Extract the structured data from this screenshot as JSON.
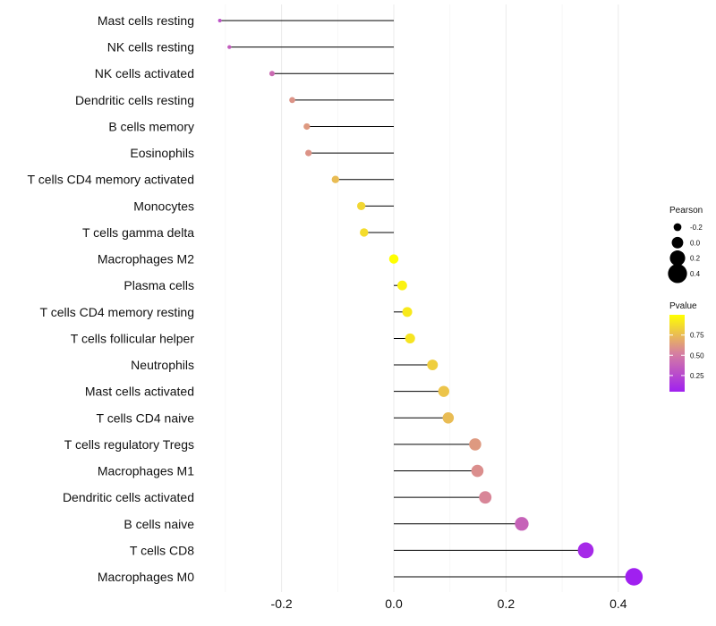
{
  "chart_data": {
    "type": "lollipop",
    "xlim": [
      -0.31,
      0.44
    ],
    "x_ticks": [
      {
        "value": -0.2,
        "label": "-0.2"
      },
      {
        "value": 0.0,
        "label": "0.0"
      },
      {
        "value": 0.2,
        "label": "0.2"
      },
      {
        "value": 0.4,
        "label": "0.4"
      }
    ],
    "baseline": 0,
    "grid": true,
    "categories": [
      "Mast cells resting",
      "NK cells resting",
      "NK cells activated",
      "Dendritic cells resting",
      "B cells memory",
      "Eosinophils",
      "T cells CD4 memory activated",
      "Monocytes",
      "T cells gamma delta",
      "Macrophages M2",
      "Plasma cells",
      "T cells CD4 memory resting",
      "T cells follicular helper",
      "Neutrophils",
      "Mast cells activated",
      "T cells CD4 naive",
      "T cells regulatory  Tregs ",
      "Macrophages M1",
      "Dendritic cells activated",
      "B cells naive",
      "T cells CD8",
      "Macrophages M0"
    ],
    "pearson": [
      -0.31,
      -0.293,
      -0.217,
      -0.181,
      -0.155,
      -0.152,
      -0.104,
      -0.058,
      -0.053,
      0.0,
      0.015,
      0.024,
      0.029,
      0.069,
      0.089,
      0.097,
      0.145,
      0.149,
      0.163,
      0.228,
      0.342,
      0.428
    ],
    "pvalue": [
      0.3,
      0.35,
      0.42,
      0.6,
      0.62,
      0.6,
      0.75,
      0.85,
      0.87,
      1.0,
      0.95,
      0.92,
      0.9,
      0.82,
      0.78,
      0.75,
      0.62,
      0.58,
      0.55,
      0.38,
      0.1,
      0.05
    ],
    "size_legend": {
      "title": "Pearson",
      "entries": [
        {
          "value": -0.2,
          "label": "-0.2"
        },
        {
          "value": 0.0,
          "label": "0.0"
        },
        {
          "value": 0.2,
          "label": "0.2"
        },
        {
          "value": 0.4,
          "label": "0.4"
        }
      ]
    },
    "color_legend": {
      "title": "Pvalue",
      "range": [
        0.05,
        1.0
      ],
      "ticks": [
        {
          "value": 0.75,
          "label": "0.75"
        },
        {
          "value": 0.5,
          "label": "0.50"
        },
        {
          "value": 0.25,
          "label": "0.25"
        }
      ],
      "low_color": "#a020f0",
      "mid_color": "#d67fa0",
      "high_color": "#ffff00"
    },
    "title": "",
    "xlabel": "",
    "ylabel": ""
  }
}
